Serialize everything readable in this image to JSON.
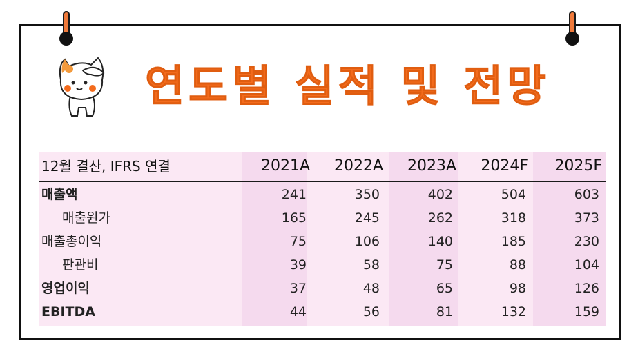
{
  "title": "연도별 실적 및 전망",
  "colors": {
    "accent": "#f36b1c",
    "band": "#fbe6f4",
    "frame": "#111111"
  },
  "table": {
    "header": {
      "label": "12월 결산, IFRS 연결",
      "years": [
        "2021A",
        "2022A",
        "2023A",
        "2024F",
        "2025F"
      ]
    },
    "rows": [
      {
        "label": "매출액",
        "style": "bold",
        "values": [
          "241",
          "350",
          "402",
          "504",
          "603"
        ]
      },
      {
        "label": "매출원가",
        "style": "indent",
        "values": [
          "165",
          "245",
          "262",
          "318",
          "373"
        ]
      },
      {
        "label": "매출총이익",
        "style": "normal",
        "values": [
          "75",
          "106",
          "140",
          "185",
          "230"
        ]
      },
      {
        "label": "판관비",
        "style": "indent",
        "values": [
          "39",
          "58",
          "75",
          "88",
          "104"
        ]
      },
      {
        "label": "영업이익",
        "style": "bold",
        "values": [
          "37",
          "48",
          "65",
          "98",
          "126"
        ]
      },
      {
        "label": "EBITDA",
        "style": "bold",
        "values": [
          "44",
          "56",
          "81",
          "132",
          "159"
        ]
      }
    ]
  }
}
